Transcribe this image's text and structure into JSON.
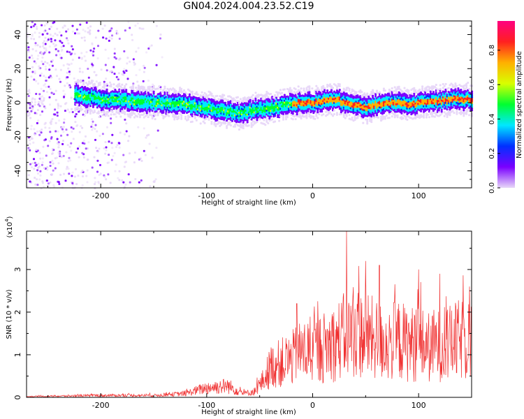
{
  "title": "GN04.2024.004.23.52.C19",
  "chart_data": [
    {
      "type": "heatmap",
      "xlabel": "Height of straight line (km)",
      "ylabel": "Frequency (Hz)",
      "xlim": [
        -270,
        150
      ],
      "ylim": [
        -50,
        48
      ],
      "xticks": [
        -200,
        -100,
        0,
        100
      ],
      "yticks": [
        -40,
        -20,
        0,
        20,
        40
      ],
      "colorbar": {
        "label": "Normalized spectral amplitude",
        "range": [
          0,
          0.97
        ],
        "ticks": [
          0.0,
          0.2,
          0.4,
          0.6,
          0.8
        ],
        "colors": [
          "#e8d8f8",
          "#7a00ff",
          "#0030ff",
          "#00e8ff",
          "#00ff30",
          "#d8ff00",
          "#ffb000",
          "#ff2020",
          "#ff0080"
        ]
      },
      "ridge_frequency": {
        "x": [
          -225,
          -200,
          -175,
          -150,
          -125,
          -100,
          -85,
          -70,
          -55,
          -40,
          -25,
          -10,
          0,
          10,
          20,
          30,
          40,
          50,
          60,
          75,
          90,
          105,
          120,
          135,
          150
        ],
        "y": [
          5,
          2,
          1,
          0,
          -1,
          -3,
          -5,
          -6,
          -4,
          -3,
          -1,
          0,
          0,
          1,
          2,
          0,
          -1,
          -3,
          -1,
          0,
          -1,
          0,
          1,
          2,
          2
        ]
      },
      "noise_region_x": [
        -270,
        -140
      ]
    },
    {
      "type": "line",
      "xlabel": "Height of straight line (km)",
      "ylabel": "SNR (10 * v/v)",
      "yunit": "(x10",
      "yunit_exp": "4",
      "yunit_close": ")",
      "xlim": [
        -270,
        150
      ],
      "ylim": [
        0,
        3.9
      ],
      "xticks": [
        -200,
        -100,
        0,
        100
      ],
      "yticks": [
        0,
        1,
        2,
        3
      ],
      "line_color": "#f03030",
      "envelope": {
        "x": [
          -270,
          -200,
          -150,
          -120,
          -100,
          -80,
          -65,
          -55,
          -45,
          -40,
          -30,
          -20,
          -10,
          0,
          10,
          20,
          30,
          40,
          50,
          60,
          70,
          80,
          90,
          100,
          110,
          120,
          130,
          140,
          150
        ],
        "y": [
          0.02,
          0.05,
          0.05,
          0.1,
          0.25,
          0.3,
          0.1,
          0.15,
          0.5,
          0.8,
          0.9,
          1.0,
          1.2,
          1.2,
          1.3,
          1.4,
          1.6,
          1.7,
          1.6,
          1.5,
          1.4,
          1.5,
          1.4,
          1.4,
          1.3,
          1.4,
          1.4,
          1.5,
          1.5
        ]
      },
      "peaks": [
        {
          "x": 32,
          "y": 3.9
        },
        {
          "x": 50,
          "y": 3.2
        },
        {
          "x": 63,
          "y": 3.1
        },
        {
          "x": 100,
          "y": 3.0
        },
        {
          "x": 120,
          "y": 2.9
        },
        {
          "x": 148,
          "y": 2.6
        },
        {
          "x": -15,
          "y": 2.2
        }
      ]
    }
  ]
}
